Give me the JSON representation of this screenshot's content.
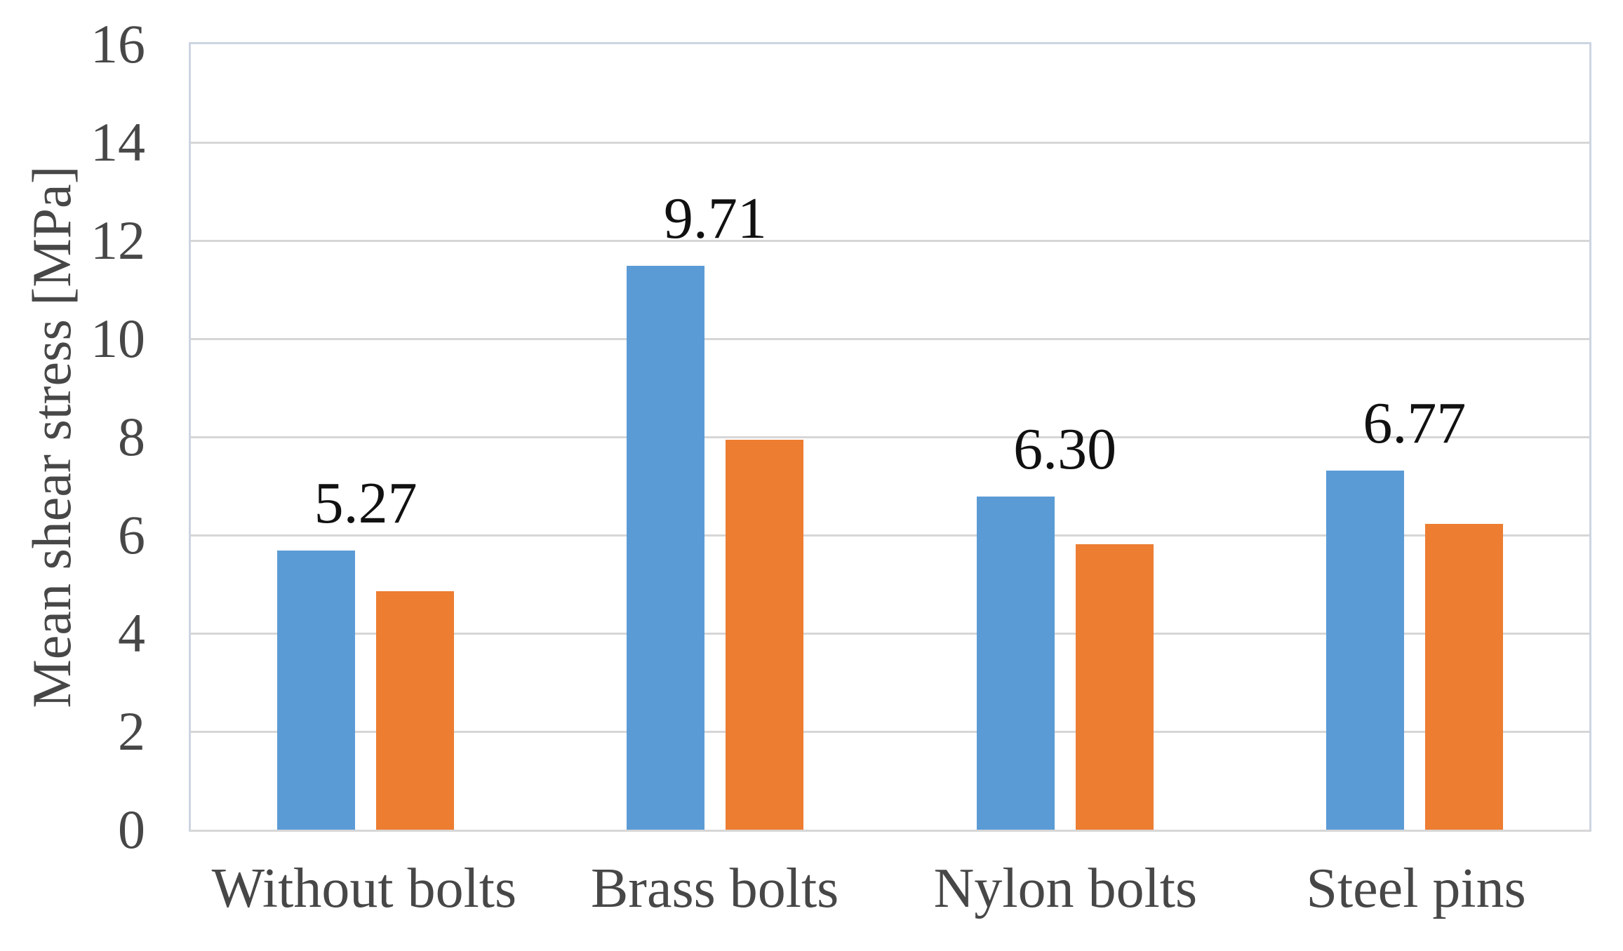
{
  "chart_data": {
    "type": "bar",
    "title": "",
    "categories": [
      "Without bolts",
      "Brass bolts",
      "Nylon bolts",
      "Steel pins"
    ],
    "series": [
      {
        "name": "blue",
        "color": "#5B9BD5",
        "values": [
          5.68,
          11.48,
          6.78,
          7.31
        ]
      },
      {
        "name": "orange",
        "color": "#ED7D31",
        "values": [
          4.86,
          7.94,
          5.82,
          6.23
        ]
      }
    ],
    "group_mean_labels": [
      "5.27",
      "9.71",
      "6.30",
      "6.77"
    ],
    "ylabel": "Mean shear stress [MPa]",
    "xlabel": "",
    "ylim": [
      0,
      16
    ],
    "yticks": [
      0,
      2,
      4,
      6,
      8,
      10,
      12,
      14,
      16
    ],
    "grid": true,
    "legend_position": "none"
  },
  "colors": {
    "background": "#FFFFFF",
    "gridline": "#D6D6D6",
    "axis_line": "#D6D6D6",
    "plot_border": "#CDD5E2",
    "axis_text": "#474747",
    "data_label_text": "#111111"
  }
}
